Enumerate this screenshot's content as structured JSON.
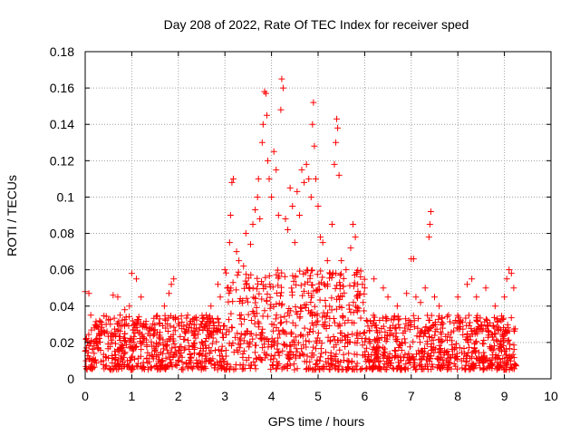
{
  "chart_data": {
    "type": "scatter",
    "title": "Day 208 of 2022, Rate Of TEC Index for receiver sped",
    "xlabel": "GPS time / hours",
    "ylabel": "ROTI / TECUs",
    "xlim": [
      0,
      10
    ],
    "ylim": [
      0,
      0.18
    ],
    "xticks": [
      0,
      1,
      2,
      3,
      4,
      5,
      6,
      7,
      8,
      9,
      10
    ],
    "yticks": [
      0,
      0.02,
      0.04,
      0.06,
      0.08,
      0.1,
      0.12,
      0.14,
      0.16,
      0.18
    ],
    "xtick_labels": [
      "0",
      "1",
      "2",
      "3",
      "4",
      "5",
      "6",
      "7",
      "8",
      "9",
      "10"
    ],
    "ytick_labels": [
      "0",
      "0.02",
      "0.04",
      "0.06",
      "0.08",
      "0.1",
      "0.12",
      "0.14",
      "0.16",
      "0.18"
    ],
    "grid": true,
    "marker": "+",
    "series_color": "#ff0000",
    "series": [
      {
        "name": "ROTI",
        "points": [
          [
            0.0,
            0.048
          ],
          [
            0.05,
            0.02
          ],
          [
            0.08,
            0.047
          ],
          [
            0.12,
            0.035
          ],
          [
            0.2,
            0.028
          ],
          [
            0.3,
            0.025
          ],
          [
            0.45,
            0.03
          ],
          [
            0.6,
            0.046
          ],
          [
            0.7,
            0.045
          ],
          [
            0.75,
            0.035
          ],
          [
            0.85,
            0.038
          ],
          [
            0.95,
            0.04
          ],
          [
            1.0,
            0.058
          ],
          [
            1.1,
            0.055
          ],
          [
            1.2,
            0.045
          ],
          [
            1.3,
            0.03
          ],
          [
            1.4,
            0.028
          ],
          [
            1.5,
            0.027
          ],
          [
            1.6,
            0.033
          ],
          [
            1.7,
            0.04
          ],
          [
            1.8,
            0.047
          ],
          [
            1.85,
            0.052
          ],
          [
            1.9,
            0.055
          ],
          [
            2.0,
            0.033
          ],
          [
            2.2,
            0.035
          ],
          [
            2.5,
            0.03
          ],
          [
            2.6,
            0.035
          ],
          [
            2.7,
            0.04
          ],
          [
            2.85,
            0.052
          ],
          [
            2.9,
            0.045
          ],
          [
            3.0,
            0.06
          ],
          [
            3.05,
            0.05
          ],
          [
            3.1,
            0.075
          ],
          [
            3.12,
            0.09
          ],
          [
            3.15,
            0.108
          ],
          [
            3.18,
            0.11
          ],
          [
            3.25,
            0.07
          ],
          [
            3.3,
            0.065
          ],
          [
            3.4,
            0.062
          ],
          [
            3.45,
            0.08
          ],
          [
            3.55,
            0.074
          ],
          [
            3.6,
            0.085
          ],
          [
            3.65,
            0.093
          ],
          [
            3.7,
            0.1
          ],
          [
            3.72,
            0.11
          ],
          [
            3.75,
            0.088
          ],
          [
            3.8,
            0.13
          ],
          [
            3.82,
            0.14
          ],
          [
            3.85,
            0.158
          ],
          [
            3.88,
            0.157
          ],
          [
            3.9,
            0.145
          ],
          [
            3.92,
            0.12
          ],
          [
            3.95,
            0.11
          ],
          [
            4.0,
            0.1
          ],
          [
            4.05,
            0.125
          ],
          [
            4.1,
            0.115
          ],
          [
            4.15,
            0.09
          ],
          [
            4.2,
            0.148
          ],
          [
            4.22,
            0.165
          ],
          [
            4.25,
            0.16
          ],
          [
            4.3,
            0.088
          ],
          [
            4.35,
            0.082
          ],
          [
            4.4,
            0.105
          ],
          [
            4.45,
            0.095
          ],
          [
            4.5,
            0.075
          ],
          [
            4.55,
            0.103
          ],
          [
            4.6,
            0.09
          ],
          [
            4.65,
            0.115
          ],
          [
            4.7,
            0.108
          ],
          [
            4.75,
            0.118
          ],
          [
            4.8,
            0.11
          ],
          [
            4.85,
            0.1
          ],
          [
            4.88,
            0.14
          ],
          [
            4.9,
            0.152
          ],
          [
            4.92,
            0.128
          ],
          [
            4.95,
            0.11
          ],
          [
            5.0,
            0.095
          ],
          [
            5.05,
            0.078
          ],
          [
            5.1,
            0.075
          ],
          [
            5.2,
            0.065
          ],
          [
            5.3,
            0.085
          ],
          [
            5.35,
            0.118
          ],
          [
            5.38,
            0.13
          ],
          [
            5.4,
            0.143
          ],
          [
            5.42,
            0.138
          ],
          [
            5.45,
            0.112
          ],
          [
            5.5,
            0.065
          ],
          [
            5.6,
            0.06
          ],
          [
            5.7,
            0.072
          ],
          [
            5.75,
            0.085
          ],
          [
            5.8,
            0.078
          ],
          [
            5.85,
            0.052
          ],
          [
            6.0,
            0.05
          ],
          [
            6.2,
            0.055
          ],
          [
            6.4,
            0.05
          ],
          [
            6.5,
            0.045
          ],
          [
            6.7,
            0.04
          ],
          [
            6.9,
            0.047
          ],
          [
            7.0,
            0.066
          ],
          [
            7.05,
            0.066
          ],
          [
            7.1,
            0.045
          ],
          [
            7.2,
            0.042
          ],
          [
            7.3,
            0.05
          ],
          [
            7.38,
            0.078
          ],
          [
            7.4,
            0.085
          ],
          [
            7.42,
            0.092
          ],
          [
            7.5,
            0.045
          ],
          [
            7.6,
            0.04
          ],
          [
            7.8,
            0.035
          ],
          [
            8.0,
            0.045
          ],
          [
            8.2,
            0.052
          ],
          [
            8.3,
            0.055
          ],
          [
            8.4,
            0.045
          ],
          [
            8.6,
            0.05
          ],
          [
            8.8,
            0.04
          ],
          [
            9.0,
            0.045
          ],
          [
            9.05,
            0.055
          ],
          [
            9.1,
            0.06
          ],
          [
            9.15,
            0.058
          ],
          [
            9.2,
            0.05
          ]
        ]
      }
    ],
    "dense_band": {
      "description_values": "background cloud of ROTI values",
      "x_range": [
        0,
        9.25
      ],
      "y_typical_range": [
        0.005,
        0.035
      ],
      "y_elevated_range_between_3_and_6_hours": [
        0.005,
        0.06
      ]
    }
  }
}
